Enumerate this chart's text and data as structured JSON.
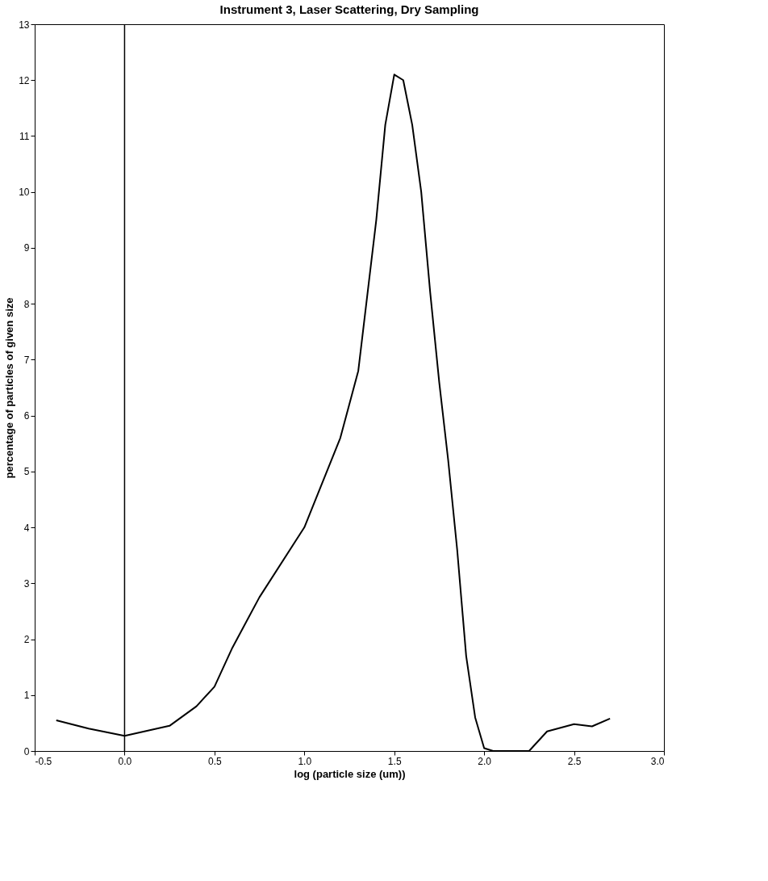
{
  "chart_data": {
    "type": "line",
    "title": "Instrument 3, Laser Scattering, Dry Sampling",
    "xlabel": "log (particle size (um))",
    "ylabel": "percentage of particles of given size",
    "x": [
      -0.38,
      -0.2,
      0.0,
      0.25,
      0.4,
      0.5,
      0.6,
      0.75,
      1.0,
      1.2,
      1.3,
      1.4,
      1.45,
      1.5,
      1.55,
      1.6,
      1.65,
      1.7,
      1.75,
      1.8,
      1.85,
      1.9,
      1.95,
      2.0,
      2.05,
      2.25,
      2.35,
      2.5,
      2.6,
      2.7
    ],
    "series": [
      {
        "color": "#000000",
        "values": [
          0.55,
          0.4,
          0.27,
          0.45,
          0.8,
          1.15,
          1.85,
          2.75,
          4.0,
          5.6,
          6.8,
          9.5,
          11.2,
          12.1,
          12.0,
          11.2,
          10.0,
          8.2,
          6.6,
          5.2,
          3.6,
          1.7,
          0.6,
          0.05,
          0.0,
          0.0,
          0.35,
          0.48,
          0.44,
          0.58
        ]
      }
    ],
    "xlim": [
      -0.5,
      3.0
    ],
    "ylim": [
      0,
      13
    ],
    "xticks": [
      {
        "value": -0.5,
        "label": "-0.5"
      },
      {
        "value": 0,
        "label": "0.0"
      },
      0.5,
      {
        "value": 1,
        "label": "1.0"
      },
      1.5,
      {
        "value": 2,
        "label": "2.0"
      },
      2.5,
      {
        "value": 3,
        "label": "3.0"
      }
    ],
    "yticks": [
      0,
      1,
      2,
      3,
      4,
      5,
      6,
      7,
      8,
      9,
      10,
      11,
      12,
      13
    ],
    "ref_lines": [
      {
        "axis": "x",
        "value": 0,
        "color": "#000000"
      }
    ],
    "grid": false,
    "marker": "none",
    "line_style": "solid"
  }
}
